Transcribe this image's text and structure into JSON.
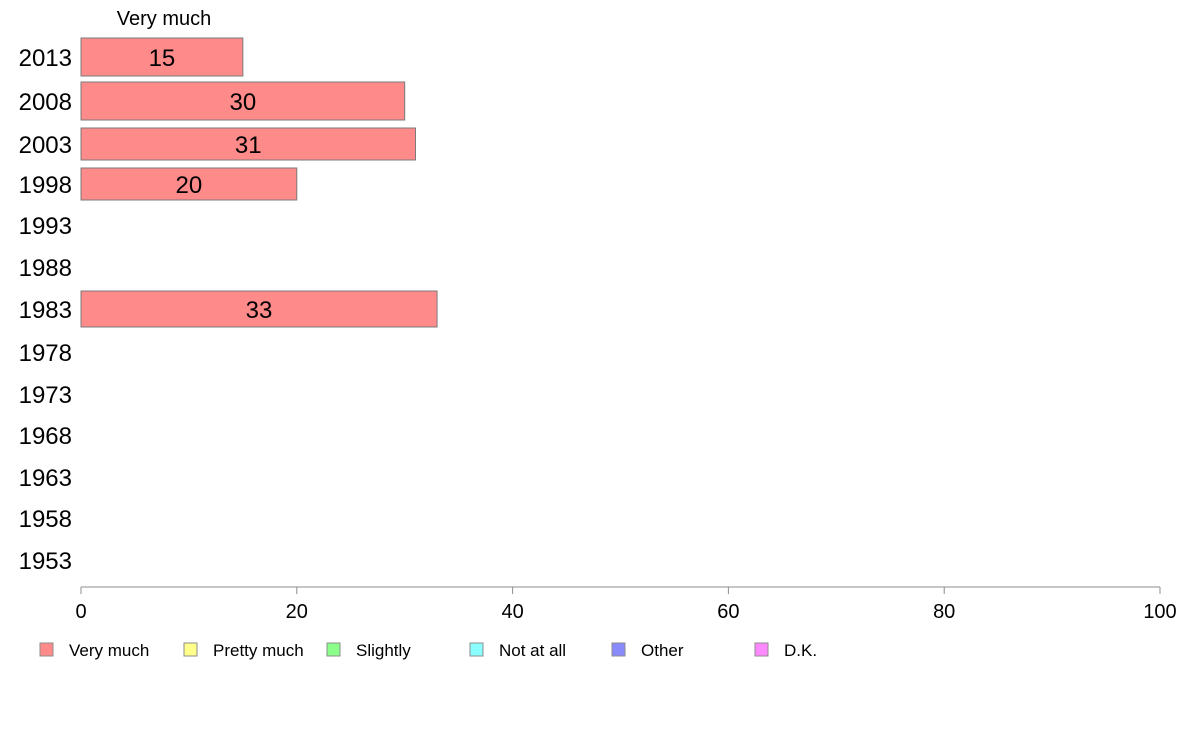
{
  "chart_data": {
    "type": "bar",
    "orientation": "horizontal",
    "categories": [
      "2013",
      "2008",
      "2003",
      "1998",
      "1993",
      "1988",
      "1983",
      "1978",
      "1973",
      "1968",
      "1963",
      "1958",
      "1953"
    ],
    "series": [
      {
        "name": "Very much",
        "color": "#ff8a8a",
        "values": [
          15,
          30,
          31,
          20,
          null,
          null,
          33,
          null,
          null,
          null,
          null,
          null,
          null
        ]
      }
    ],
    "series_title": "Very much",
    "xlim": [
      0,
      100
    ],
    "xticks": [
      0,
      20,
      40,
      60,
      80,
      100
    ],
    "grid": false,
    "legend_position": "bottom",
    "legend": [
      {
        "label": "Very much",
        "color": "#ff8a8a"
      },
      {
        "label": "Pretty much",
        "color": "#ffff8a"
      },
      {
        "label": "Slightly",
        "color": "#8aff8a"
      },
      {
        "label": "Not at all",
        "color": "#8affff"
      },
      {
        "label": "Other",
        "color": "#8a8aff"
      },
      {
        "label": "D.K.",
        "color": "#ff8aff"
      }
    ]
  }
}
